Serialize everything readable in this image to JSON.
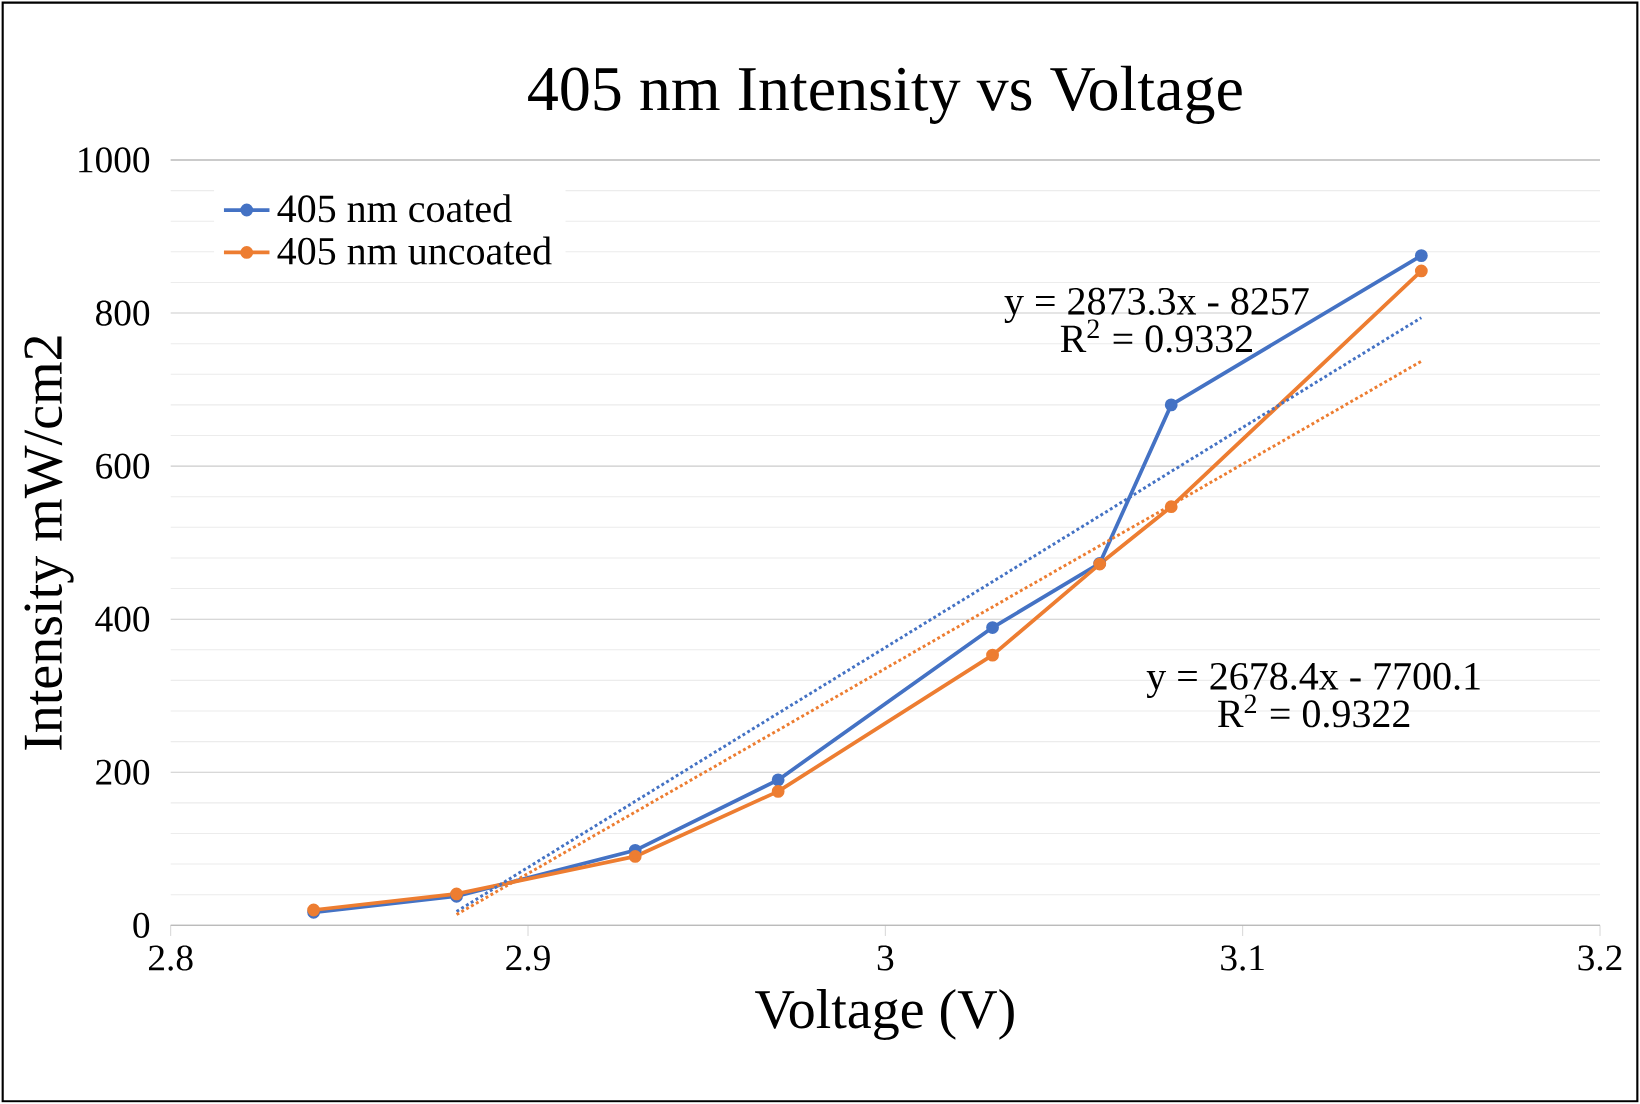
{
  "chart_data": {
    "type": "line",
    "title": "405 nm Intensity vs Voltage",
    "xlabel": "Voltage (V)",
    "ylabel": "Intensity mW/cm2",
    "xlim": [
      2.8,
      3.2
    ],
    "xticks": [
      2.8,
      2.9,
      3,
      3.1,
      3.2
    ],
    "ylim": [
      0,
      1000
    ],
    "yticks": [
      0,
      200,
      400,
      600,
      800,
      1000
    ],
    "grid": "y",
    "legend": "top left",
    "marker": "circle",
    "line_style": "solid",
    "x": [
      2.84,
      2.88,
      2.93,
      2.97,
      3.03,
      3.06,
      3.08,
      3.15
    ],
    "series": [
      {
        "name": "405 nm coated",
        "color": "#4472c4",
        "values": [
          17,
          38,
          98,
          190,
          389,
          473,
          680,
          875
        ]
      },
      {
        "name": "405 nm uncoated",
        "color": "#ed7d31",
        "values": [
          20,
          41,
          90,
          175,
          353,
          472,
          547,
          855
        ]
      },
      {
        "type": "line",
        "color": "#4472c4",
        "marker": "none",
        "line_style": "dotted",
        "values": [
          null,
          18,
          162,
          277,
          449,
          535,
          593,
          794
        ]
      },
      {
        "type": "line",
        "color": "#ed7d31",
        "marker": "none",
        "line_style": "dotted",
        "values": [
          null,
          14,
          148,
          255,
          416,
          496,
          549,
          737
        ]
      }
    ],
    "annotations": [
      "y = 2873.3x - 8257",
      "R$^{2}$ = 0.9332",
      "y = 2678.4x - 7700.1",
      "R$^{2}$ = 0.9322"
    ]
  }
}
